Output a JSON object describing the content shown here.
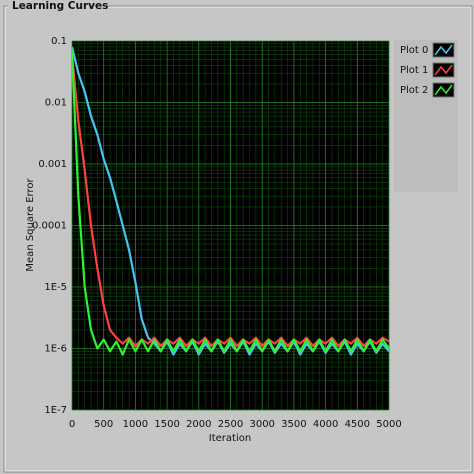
{
  "chart_data": {
    "type": "line",
    "panel_title": "Learning Curves",
    "xlabel": "Iteration",
    "ylabel": "Mean Square Error",
    "log_y": true,
    "grid": true,
    "legend": "right",
    "xlim": [
      0,
      5000
    ],
    "ylim": [
      1e-07,
      0.1
    ],
    "xticks": [
      0,
      500,
      1000,
      1500,
      2000,
      2500,
      3000,
      3500,
      4000,
      4500,
      5000
    ],
    "yticks": [
      0.1,
      0.01,
      0.001,
      0.0001,
      {
        "value": 1e-05,
        "label": "1E-5"
      },
      {
        "value": 1e-06,
        "label": "1E-6"
      },
      {
        "value": 1e-07,
        "label": "1E-7"
      }
    ],
    "x": [
      0,
      100,
      200,
      300,
      400,
      500,
      600,
      700,
      800,
      900,
      1000,
      1100,
      1200,
      1300,
      1400,
      1500,
      1600,
      1700,
      1800,
      1900,
      2000,
      2100,
      2200,
      2300,
      2400,
      2500,
      2600,
      2700,
      2800,
      2900,
      3000,
      3100,
      3200,
      3300,
      3400,
      3500,
      3600,
      3700,
      3800,
      3900,
      4000,
      4100,
      4200,
      4300,
      4400,
      4500,
      4600,
      4700,
      4800,
      4900,
      5000
    ],
    "series": [
      {
        "name": "Plot 0",
        "color": "#48c4f4",
        "values": [
          0.08,
          0.03,
          0.015,
          0.006,
          0.003,
          0.0012,
          0.0006,
          0.00025,
          0.0001,
          4e-05,
          1.2e-05,
          3e-06,
          1.5e-06,
          1.2e-06,
          9e-07,
          1.3e-06,
          8e-07,
          1.2e-06,
          9e-07,
          1.3e-06,
          8e-07,
          1.2e-06,
          9e-07,
          1.3e-06,
          8.5e-07,
          1.2e-06,
          9e-07,
          1.3e-06,
          8e-07,
          1.2e-06,
          9e-07,
          1.3e-06,
          8.5e-07,
          1.2e-06,
          9e-07,
          1.3e-06,
          8e-07,
          1.2e-06,
          9e-07,
          1.3e-06,
          8.5e-07,
          1.2e-06,
          9e-07,
          1.3e-06,
          8e-07,
          1.2e-06,
          9e-07,
          1.3e-06,
          8.5e-07,
          1.2e-06,
          9e-07
        ]
      },
      {
        "name": "Plot 1",
        "color": "#ff4040",
        "values": [
          0.06,
          0.005,
          0.0008,
          0.0001,
          2e-05,
          5e-06,
          2e-06,
          1.5e-06,
          1.2e-06,
          1.5e-06,
          1.1e-06,
          1.4e-06,
          1.2e-06,
          1.5e-06,
          1.1e-06,
          1.4e-06,
          1.2e-06,
          1.5e-06,
          1.1e-06,
          1.4e-06,
          1.2e-06,
          1.5e-06,
          1.1e-06,
          1.4e-06,
          1.2e-06,
          1.5e-06,
          1.1e-06,
          1.4e-06,
          1.2e-06,
          1.5e-06,
          1.1e-06,
          1.4e-06,
          1.2e-06,
          1.5e-06,
          1.1e-06,
          1.4e-06,
          1.2e-06,
          1.5e-06,
          1.1e-06,
          1.4e-06,
          1.2e-06,
          1.5e-06,
          1.1e-06,
          1.4e-06,
          1.2e-06,
          1.5e-06,
          1.1e-06,
          1.4e-06,
          1.2e-06,
          1.5e-06,
          1.3e-06
        ]
      },
      {
        "name": "Plot 2",
        "color": "#30f030",
        "values": [
          0.07,
          0.0003,
          1e-05,
          2e-06,
          1e-06,
          1.4e-06,
          9e-07,
          1.3e-06,
          8e-07,
          1.4e-06,
          9e-07,
          1.4e-06,
          9e-07,
          1.4e-06,
          9e-07,
          1.4e-06,
          9e-07,
          1.4e-06,
          9e-07,
          1.4e-06,
          9e-07,
          1.4e-06,
          9e-07,
          1.4e-06,
          9e-07,
          1.4e-06,
          9e-07,
          1.4e-06,
          9e-07,
          1.4e-06,
          9e-07,
          1.4e-06,
          9e-07,
          1.4e-06,
          9e-07,
          1.4e-06,
          9e-07,
          1.4e-06,
          9e-07,
          1.4e-06,
          9e-07,
          1.4e-06,
          9e-07,
          1.4e-06,
          9e-07,
          1.4e-06,
          9e-07,
          1.4e-06,
          9e-07,
          1.4e-06,
          1e-06
        ]
      }
    ]
  }
}
